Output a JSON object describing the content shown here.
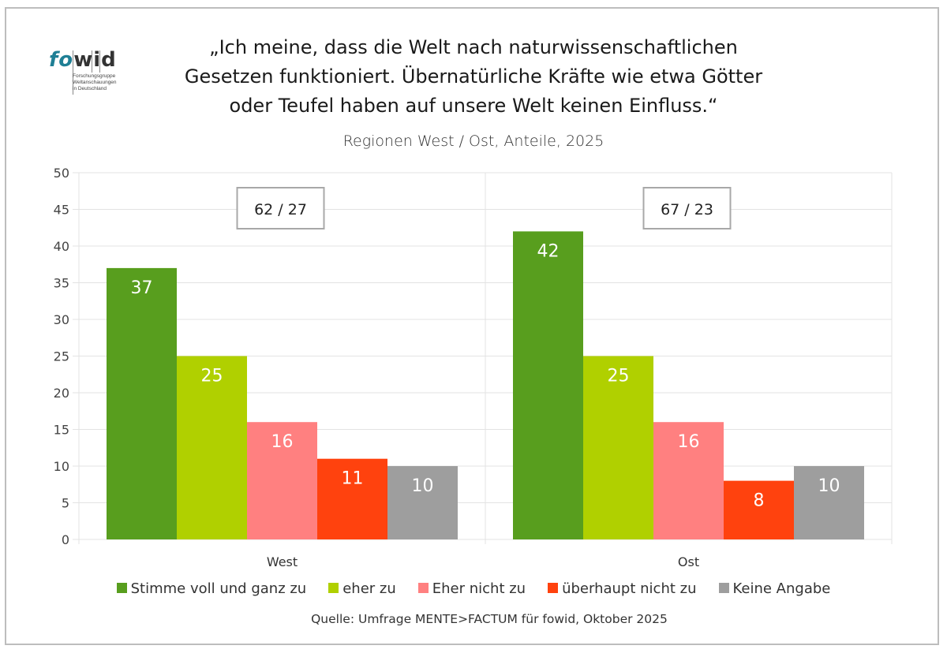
{
  "logo": {
    "brand_part1": "fo",
    "brand_part2": "wid",
    "tagline_lines": [
      "Forschungsgruppe",
      "Weltanschauungen",
      "in Deutschland"
    ]
  },
  "chart_data": {
    "type": "bar",
    "title": "„Ich meine, dass die Welt nach naturwissenschaftlichen\nGesetzen funktioniert. Übernatürliche Kräfte wie etwa Götter\noder Teufel haben auf unsere Welt keinen Einfluss.“",
    "subtitle": "Regionen West / Ost, Anteile, 2025",
    "xlabel": "",
    "ylabel": "",
    "ylim": [
      0,
      50
    ],
    "yticks": [
      0,
      5,
      10,
      15,
      20,
      25,
      30,
      35,
      40,
      45,
      50
    ],
    "grid": true,
    "categories": [
      "West",
      "Ost"
    ],
    "series": [
      {
        "name": "Stimme voll und ganz zu",
        "color": "#589e1e",
        "values": [
          37,
          42
        ]
      },
      {
        "name": "eher zu",
        "color": "#b0d000",
        "values": [
          25,
          25
        ]
      },
      {
        "name": "Eher nicht zu",
        "color": "#ff8080",
        "values": [
          16,
          16
        ]
      },
      {
        "name": "überhaupt nicht zu",
        "color": "#ff420e",
        "values": [
          11,
          8
        ]
      },
      {
        "name": "Keine Angabe",
        "color": "#9e9e9e",
        "values": [
          10,
          10
        ]
      }
    ],
    "annotations": [
      {
        "category": "West",
        "text": "62 / 27"
      },
      {
        "category": "Ost",
        "text": "67 / 23"
      }
    ],
    "legend_position": "bottom",
    "source": "Quelle: Umfrage MENTE>FACTUM für fowid, Oktober 2025"
  }
}
